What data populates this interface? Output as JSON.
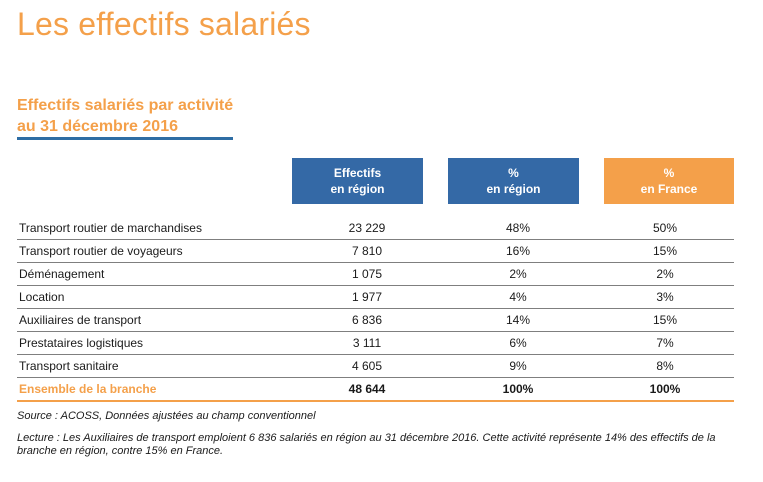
{
  "title": "Les effectifs salariés",
  "section": {
    "title_line1": "Effectifs salariés par activité",
    "title_line2": "au 31 décembre 2016"
  },
  "headers": {
    "effectifs": {
      "line1": "Effectifs",
      "line2": "en région"
    },
    "pct_region": {
      "line1": "%",
      "line2": "en région"
    },
    "pct_france": {
      "line1": "%",
      "line2": "en France"
    }
  },
  "rows": [
    {
      "label": "Transport routier de marchandises",
      "effectifs": "23 229",
      "pct_region": "48%",
      "pct_france": "50%"
    },
    {
      "label": "Transport routier de voyageurs",
      "effectifs": "7 810",
      "pct_region": "16%",
      "pct_france": "15%"
    },
    {
      "label": "Déménagement",
      "effectifs": "1 075",
      "pct_region": "2%",
      "pct_france": "2%"
    },
    {
      "label": "Location",
      "effectifs": "1 977",
      "pct_region": "4%",
      "pct_france": "3%"
    },
    {
      "label": "Auxiliaires de transport",
      "effectifs": "6 836",
      "pct_region": "14%",
      "pct_france": "15%"
    },
    {
      "label": "Prestataires logistiques",
      "effectifs": "3 111",
      "pct_region": "6%",
      "pct_france": "7%"
    },
    {
      "label": "Transport sanitaire",
      "effectifs": "4 605",
      "pct_region": "9%",
      "pct_france": "8%"
    }
  ],
  "total": {
    "label": "Ensemble de la branche",
    "effectifs": "48 644",
    "pct_region": "100%",
    "pct_france": "100%"
  },
  "source": "Source : ACOSS, Données ajustées au champ conventionnel",
  "reading": "Lecture : Les Auxiliaires de transport emploient 6 836 salariés en région au 31 décembre 2016. Cette activité représente 14% des effectifs de la branche en région, contre 15% en France.",
  "colors": {
    "accent_orange": "#f4a04a",
    "header_blue": "#3469a6",
    "underline_blue": "#2e6da4"
  }
}
